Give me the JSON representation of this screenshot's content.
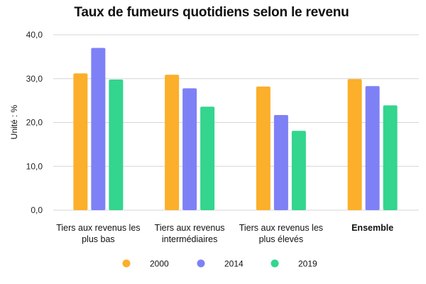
{
  "chart_data": {
    "type": "bar",
    "title": "Taux de fumeurs quotidiens selon le revenu",
    "ylabel": "Unité : %",
    "xlabel": "",
    "ylim": [
      0,
      40
    ],
    "yticks": [
      "0,0",
      "10,0",
      "20,0",
      "30,0",
      "40,0"
    ],
    "grid": true,
    "legend_position": "bottom",
    "categories": [
      [
        "Tiers aux revenus les",
        "plus bas"
      ],
      [
        "Tiers aux revenus",
        "intermédiaires"
      ],
      [
        "Tiers aux revenus les",
        "plus élevés"
      ],
      [
        "Ensemble"
      ]
    ],
    "bold_categories": [
      3
    ],
    "series": [
      {
        "name": "2000",
        "color": "#FBAF2A",
        "values": [
          31.2,
          30.9,
          28.2,
          29.9
        ]
      },
      {
        "name": "2014",
        "color": "#7E81F5",
        "values": [
          37.0,
          27.8,
          21.7,
          28.3
        ]
      },
      {
        "name": "2019",
        "color": "#33D58F",
        "values": [
          29.8,
          23.6,
          18.1,
          23.9
        ]
      }
    ]
  }
}
